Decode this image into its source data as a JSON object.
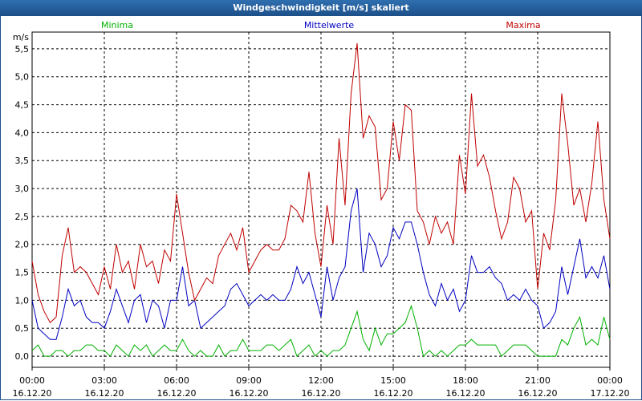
{
  "window": {
    "title": "Windgeschwindigkeit [m/s] skaliert"
  },
  "chart_data": {
    "type": "line",
    "title": "Windgeschwindigkeit [m/s] skaliert",
    "ylabel": "m/s",
    "ylim": [
      -0.2,
      5.8
    ],
    "yticks": [
      "0,0",
      "0,5",
      "1,0",
      "1,5",
      "2,0",
      "2,5",
      "3,0",
      "3,5",
      "4,0",
      "4,5",
      "5,0",
      "5,5"
    ],
    "xticks": [
      {
        "time": "00:00",
        "date": "16.12.20"
      },
      {
        "time": "03:00",
        "date": "16.12.20"
      },
      {
        "time": "06:00",
        "date": "16.12.20"
      },
      {
        "time": "09:00",
        "date": "16.12.20"
      },
      {
        "time": "12:00",
        "date": "16.12.20"
      },
      {
        "time": "15:00",
        "date": "16.12.20"
      },
      {
        "time": "18:00",
        "date": "16.12.20"
      },
      {
        "time": "21:00",
        "date": "16.12.20"
      },
      {
        "time": "00:00",
        "date": "17.12.20"
      }
    ],
    "grid": true,
    "legend_position": "top",
    "x_unit": "hours since 16.12.20 00:00",
    "series": [
      {
        "name": "Minima",
        "color": "#00b000",
        "points": [
          [
            0,
            0.1
          ],
          [
            0.25,
            0.2
          ],
          [
            0.5,
            0.0
          ],
          [
            0.75,
            0.0
          ],
          [
            1.0,
            0.1
          ],
          [
            1.25,
            0.1
          ],
          [
            1.5,
            0.0
          ],
          [
            1.75,
            0.1
          ],
          [
            2.0,
            0.1
          ],
          [
            2.25,
            0.2
          ],
          [
            2.5,
            0.2
          ],
          [
            2.75,
            0.1
          ],
          [
            3.0,
            0.1
          ],
          [
            3.25,
            0.0
          ],
          [
            3.5,
            0.2
          ],
          [
            3.75,
            0.1
          ],
          [
            4.0,
            0.0
          ],
          [
            4.25,
            0.2
          ],
          [
            4.5,
            0.1
          ],
          [
            4.75,
            0.2
          ],
          [
            5.0,
            0.0
          ],
          [
            5.25,
            0.1
          ],
          [
            5.5,
            0.2
          ],
          [
            5.75,
            0.1
          ],
          [
            6.0,
            0.1
          ],
          [
            6.25,
            0.3
          ],
          [
            6.5,
            0.1
          ],
          [
            6.75,
            0.0
          ],
          [
            7.0,
            0.1
          ],
          [
            7.25,
            0.0
          ],
          [
            7.5,
            0.0
          ],
          [
            7.75,
            0.2
          ],
          [
            8.0,
            0.0
          ],
          [
            8.25,
            0.1
          ],
          [
            8.5,
            0.1
          ],
          [
            8.75,
            0.3
          ],
          [
            9.0,
            0.1
          ],
          [
            9.25,
            0.1
          ],
          [
            9.5,
            0.1
          ],
          [
            9.75,
            0.2
          ],
          [
            10.0,
            0.2
          ],
          [
            10.25,
            0.1
          ],
          [
            10.5,
            0.2
          ],
          [
            10.75,
            0.3
          ],
          [
            11.0,
            0.0
          ],
          [
            11.25,
            0.1
          ],
          [
            11.5,
            0.2
          ],
          [
            11.75,
            0.0
          ],
          [
            12.0,
            0.1
          ],
          [
            12.25,
            0.0
          ],
          [
            12.5,
            0.1
          ],
          [
            12.75,
            0.1
          ],
          [
            13.0,
            0.2
          ],
          [
            13.25,
            0.5
          ],
          [
            13.5,
            0.8
          ],
          [
            13.75,
            0.3
          ],
          [
            14.0,
            0.1
          ],
          [
            14.25,
            0.5
          ],
          [
            14.5,
            0.2
          ],
          [
            14.75,
            0.4
          ],
          [
            15.0,
            0.4
          ],
          [
            15.25,
            0.5
          ],
          [
            15.5,
            0.6
          ],
          [
            15.75,
            0.9
          ],
          [
            16.0,
            0.5
          ],
          [
            16.25,
            0.0
          ],
          [
            16.5,
            0.1
          ],
          [
            16.75,
            0.0
          ],
          [
            17.0,
            0.1
          ],
          [
            17.25,
            0.0
          ],
          [
            17.5,
            0.1
          ],
          [
            17.75,
            0.2
          ],
          [
            18.0,
            0.2
          ],
          [
            18.25,
            0.3
          ],
          [
            18.5,
            0.2
          ],
          [
            18.75,
            0.2
          ],
          [
            19.0,
            0.2
          ],
          [
            19.25,
            0.2
          ],
          [
            19.5,
            0.0
          ],
          [
            19.75,
            0.1
          ],
          [
            20.0,
            0.2
          ],
          [
            20.25,
            0.2
          ],
          [
            20.5,
            0.2
          ],
          [
            20.75,
            0.1
          ],
          [
            21.0,
            0.0
          ],
          [
            21.25,
            0.0
          ],
          [
            21.5,
            0.0
          ],
          [
            21.75,
            0.0
          ],
          [
            22.0,
            0.3
          ],
          [
            22.25,
            0.2
          ],
          [
            22.5,
            0.5
          ],
          [
            22.75,
            0.7
          ],
          [
            23.0,
            0.2
          ],
          [
            23.25,
            0.3
          ],
          [
            23.5,
            0.2
          ],
          [
            23.75,
            0.7
          ],
          [
            24.0,
            0.3
          ]
        ]
      },
      {
        "name": "Mittelwerte",
        "color": "#0000c0",
        "points": [
          [
            0,
            1.0
          ],
          [
            0.25,
            0.5
          ],
          [
            0.5,
            0.4
          ],
          [
            0.75,
            0.3
          ],
          [
            1.0,
            0.3
          ],
          [
            1.25,
            0.7
          ],
          [
            1.5,
            1.2
          ],
          [
            1.75,
            0.9
          ],
          [
            2.0,
            1.0
          ],
          [
            2.25,
            0.7
          ],
          [
            2.5,
            0.6
          ],
          [
            2.75,
            0.6
          ],
          [
            3.0,
            0.5
          ],
          [
            3.25,
            0.8
          ],
          [
            3.5,
            1.2
          ],
          [
            3.75,
            0.9
          ],
          [
            4.0,
            0.6
          ],
          [
            4.25,
            1.0
          ],
          [
            4.5,
            1.1
          ],
          [
            4.75,
            0.6
          ],
          [
            5.0,
            1.0
          ],
          [
            5.25,
            0.9
          ],
          [
            5.5,
            0.5
          ],
          [
            5.75,
            1.0
          ],
          [
            6.0,
            1.0
          ],
          [
            6.25,
            1.6
          ],
          [
            6.5,
            0.9
          ],
          [
            6.75,
            1.0
          ],
          [
            7.0,
            0.5
          ],
          [
            7.25,
            0.6
          ],
          [
            7.5,
            0.7
          ],
          [
            7.75,
            0.8
          ],
          [
            8.0,
            0.9
          ],
          [
            8.25,
            1.2
          ],
          [
            8.5,
            1.3
          ],
          [
            8.75,
            1.1
          ],
          [
            9.0,
            0.9
          ],
          [
            9.25,
            1.0
          ],
          [
            9.5,
            1.1
          ],
          [
            9.75,
            1.0
          ],
          [
            10.0,
            1.1
          ],
          [
            10.25,
            1.0
          ],
          [
            10.5,
            1.0
          ],
          [
            10.75,
            1.2
          ],
          [
            11.0,
            1.6
          ],
          [
            11.25,
            1.3
          ],
          [
            11.5,
            1.5
          ],
          [
            11.75,
            1.1
          ],
          [
            12.0,
            0.7
          ],
          [
            12.25,
            1.6
          ],
          [
            12.5,
            1.0
          ],
          [
            12.75,
            1.4
          ],
          [
            13.0,
            1.6
          ],
          [
            13.25,
            2.6
          ],
          [
            13.5,
            3.0
          ],
          [
            13.75,
            1.5
          ],
          [
            14.0,
            2.2
          ],
          [
            14.25,
            2.0
          ],
          [
            14.5,
            1.6
          ],
          [
            14.75,
            1.8
          ],
          [
            15.0,
            2.3
          ],
          [
            15.25,
            2.1
          ],
          [
            15.5,
            2.4
          ],
          [
            15.75,
            2.4
          ],
          [
            16.0,
            2.0
          ],
          [
            16.25,
            1.5
          ],
          [
            16.5,
            1.1
          ],
          [
            16.75,
            0.9
          ],
          [
            17.0,
            1.3
          ],
          [
            17.25,
            1.0
          ],
          [
            17.5,
            1.2
          ],
          [
            17.75,
            0.8
          ],
          [
            18.0,
            1.0
          ],
          [
            18.25,
            1.8
          ],
          [
            18.5,
            1.5
          ],
          [
            18.75,
            1.5
          ],
          [
            19.0,
            1.6
          ],
          [
            19.25,
            1.4
          ],
          [
            19.5,
            1.3
          ],
          [
            19.75,
            1.0
          ],
          [
            20.0,
            1.1
          ],
          [
            20.25,
            1.0
          ],
          [
            20.5,
            1.2
          ],
          [
            20.75,
            1.0
          ],
          [
            21.0,
            0.9
          ],
          [
            21.25,
            0.5
          ],
          [
            21.5,
            0.6
          ],
          [
            21.75,
            0.8
          ],
          [
            22.0,
            1.6
          ],
          [
            22.25,
            1.1
          ],
          [
            22.5,
            1.6
          ],
          [
            22.75,
            2.1
          ],
          [
            23.0,
            1.4
          ],
          [
            23.25,
            1.6
          ],
          [
            23.5,
            1.4
          ],
          [
            23.75,
            1.8
          ],
          [
            24.0,
            1.2
          ]
        ]
      },
      {
        "name": "Maxima",
        "color": "#c00000",
        "points": [
          [
            0,
            1.7
          ],
          [
            0.25,
            1.1
          ],
          [
            0.5,
            0.8
          ],
          [
            0.75,
            0.6
          ],
          [
            1.0,
            0.7
          ],
          [
            1.25,
            1.8
          ],
          [
            1.5,
            2.3
          ],
          [
            1.75,
            1.5
          ],
          [
            2.0,
            1.6
          ],
          [
            2.25,
            1.5
          ],
          [
            2.5,
            1.3
          ],
          [
            2.75,
            1.1
          ],
          [
            3.0,
            1.6
          ],
          [
            3.25,
            1.2
          ],
          [
            3.5,
            2.0
          ],
          [
            3.75,
            1.5
          ],
          [
            4.0,
            1.7
          ],
          [
            4.25,
            1.2
          ],
          [
            4.5,
            2.0
          ],
          [
            4.75,
            1.6
          ],
          [
            5.0,
            1.7
          ],
          [
            5.25,
            1.3
          ],
          [
            5.5,
            1.9
          ],
          [
            5.75,
            1.7
          ],
          [
            6.0,
            2.9
          ],
          [
            6.25,
            2.2
          ],
          [
            6.5,
            1.5
          ],
          [
            6.75,
            1.0
          ],
          [
            7.0,
            1.2
          ],
          [
            7.25,
            1.4
          ],
          [
            7.5,
            1.3
          ],
          [
            7.75,
            1.8
          ],
          [
            8.0,
            2.0
          ],
          [
            8.25,
            2.2
          ],
          [
            8.5,
            1.9
          ],
          [
            8.75,
            2.3
          ],
          [
            9.0,
            1.5
          ],
          [
            9.25,
            1.7
          ],
          [
            9.5,
            1.9
          ],
          [
            9.75,
            2.0
          ],
          [
            10.0,
            1.9
          ],
          [
            10.25,
            1.9
          ],
          [
            10.5,
            2.1
          ],
          [
            10.75,
            2.7
          ],
          [
            11.0,
            2.6
          ],
          [
            11.25,
            2.4
          ],
          [
            11.5,
            3.3
          ],
          [
            11.75,
            2.2
          ],
          [
            12.0,
            1.6
          ],
          [
            12.25,
            2.7
          ],
          [
            12.5,
            2.0
          ],
          [
            12.75,
            3.9
          ],
          [
            13.0,
            2.7
          ],
          [
            13.25,
            4.7
          ],
          [
            13.5,
            5.6
          ],
          [
            13.75,
            3.9
          ],
          [
            14.0,
            4.3
          ],
          [
            14.25,
            4.1
          ],
          [
            14.5,
            2.8
          ],
          [
            14.75,
            3.0
          ],
          [
            15.0,
            4.2
          ],
          [
            15.25,
            3.5
          ],
          [
            15.5,
            4.5
          ],
          [
            15.75,
            4.4
          ],
          [
            16.0,
            2.6
          ],
          [
            16.25,
            2.4
          ],
          [
            16.5,
            2.0
          ],
          [
            16.75,
            2.5
          ],
          [
            17.0,
            2.2
          ],
          [
            17.25,
            2.4
          ],
          [
            17.5,
            2.0
          ],
          [
            17.75,
            3.6
          ],
          [
            18.0,
            2.9
          ],
          [
            18.25,
            4.7
          ],
          [
            18.5,
            3.4
          ],
          [
            18.75,
            3.6
          ],
          [
            19.0,
            3.2
          ],
          [
            19.25,
            2.6
          ],
          [
            19.5,
            2.1
          ],
          [
            19.75,
            2.4
          ],
          [
            20.0,
            3.2
          ],
          [
            20.25,
            3.0
          ],
          [
            20.5,
            2.4
          ],
          [
            20.75,
            2.6
          ],
          [
            21.0,
            1.2
          ],
          [
            21.25,
            2.2
          ],
          [
            21.5,
            1.9
          ],
          [
            21.75,
            2.8
          ],
          [
            22.0,
            4.7
          ],
          [
            22.25,
            3.8
          ],
          [
            22.5,
            2.7
          ],
          [
            22.75,
            3.0
          ],
          [
            23.0,
            2.4
          ],
          [
            23.25,
            3.1
          ],
          [
            23.5,
            4.2
          ],
          [
            23.75,
            2.8
          ],
          [
            24.0,
            2.1
          ]
        ]
      }
    ]
  }
}
